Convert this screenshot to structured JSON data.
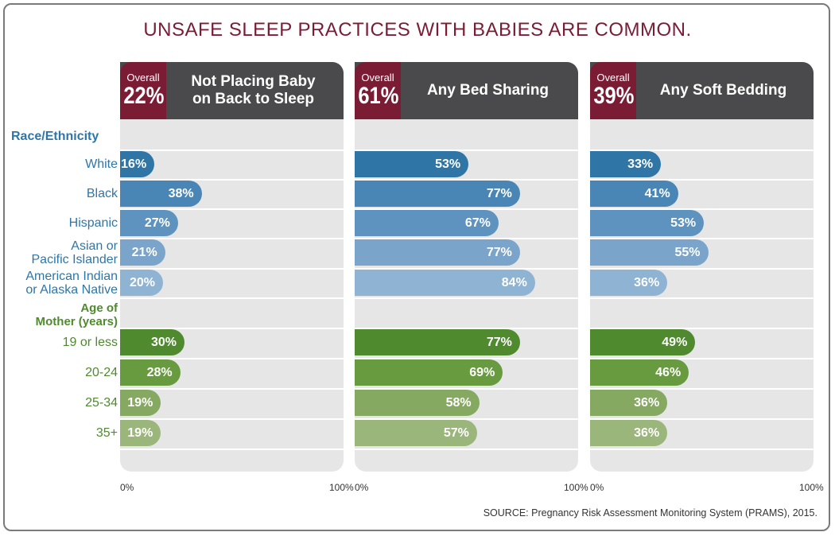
{
  "title": "UNSAFE SLEEP PRACTICES WITH BABIES ARE COMMON.",
  "source": "SOURCE: Pregnancy Risk Assessment Monitoring System (PRAMS), 2015.",
  "colors": {
    "title": "#7b1c35",
    "header": "#4a4a4c",
    "overall": "#7b1c35",
    "race_label": "#2f76a7",
    "age_label": "#4f8a2f",
    "race_bars": [
      "#2f76a7",
      "#4a86b5",
      "#5f93bf",
      "#7aa4c9",
      "#8fb3d3"
    ],
    "age_bars": [
      "#4f8a2f",
      "#689b3f",
      "#86a962",
      "#9bb67a"
    ]
  },
  "groups": {
    "race": "Race/Ethnicity",
    "age": "Age of\nMother (years)"
  },
  "chart_data": {
    "type": "bar",
    "orientation": "horizontal",
    "xlim": [
      0,
      100
    ],
    "tick_labels": [
      "0%",
      "100%"
    ],
    "categories": [
      "White",
      "Black",
      "Hispanic",
      "Asian or\nPacific Islander",
      "American Indian\nor Alaska Native",
      "19 or less",
      "20-24",
      "25-34",
      "35+"
    ],
    "category_groups": [
      "race",
      "race",
      "race",
      "race",
      "race",
      "age",
      "age",
      "age",
      "age"
    ],
    "series": [
      {
        "name": "Not Placing Baby\non Back to Sleep",
        "overall_label": "Overall",
        "overall": "22%",
        "values": [
          16,
          38,
          27,
          21,
          20,
          30,
          28,
          19,
          19
        ]
      },
      {
        "name": "Any Bed Sharing",
        "overall_label": "Overall",
        "overall": "61%",
        "values": [
          53,
          77,
          67,
          77,
          84,
          77,
          69,
          58,
          57
        ]
      },
      {
        "name": "Any Soft Bedding",
        "overall_label": "Overall",
        "overall": "39%",
        "values": [
          33,
          41,
          53,
          55,
          36,
          49,
          46,
          36,
          36
        ]
      }
    ]
  }
}
